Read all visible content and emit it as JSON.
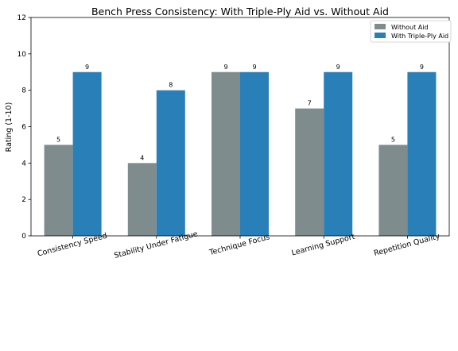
{
  "chart_data": {
    "type": "bar",
    "title": "Bench Press Consistency: With Triple-Ply Aid vs. Without Aid",
    "xlabel": "",
    "ylabel": "Rating (1-10)",
    "ylim": [
      0,
      12
    ],
    "yticks": [
      0,
      2,
      4,
      6,
      8,
      10,
      12
    ],
    "categories": [
      "Consistency Speed",
      "Stability Under Fatigue",
      "Technique Focus",
      "Learning Support",
      "Repetition Quality"
    ],
    "series": [
      {
        "name": "Without Aid",
        "color": "#7f8c8d",
        "values": [
          5,
          4,
          9,
          7,
          5
        ]
      },
      {
        "name": "With Triple-Ply Aid",
        "color": "#2980b9",
        "values": [
          9,
          8,
          9,
          9,
          9
        ]
      }
    ],
    "legend_position": "top-right",
    "grid": false
  }
}
